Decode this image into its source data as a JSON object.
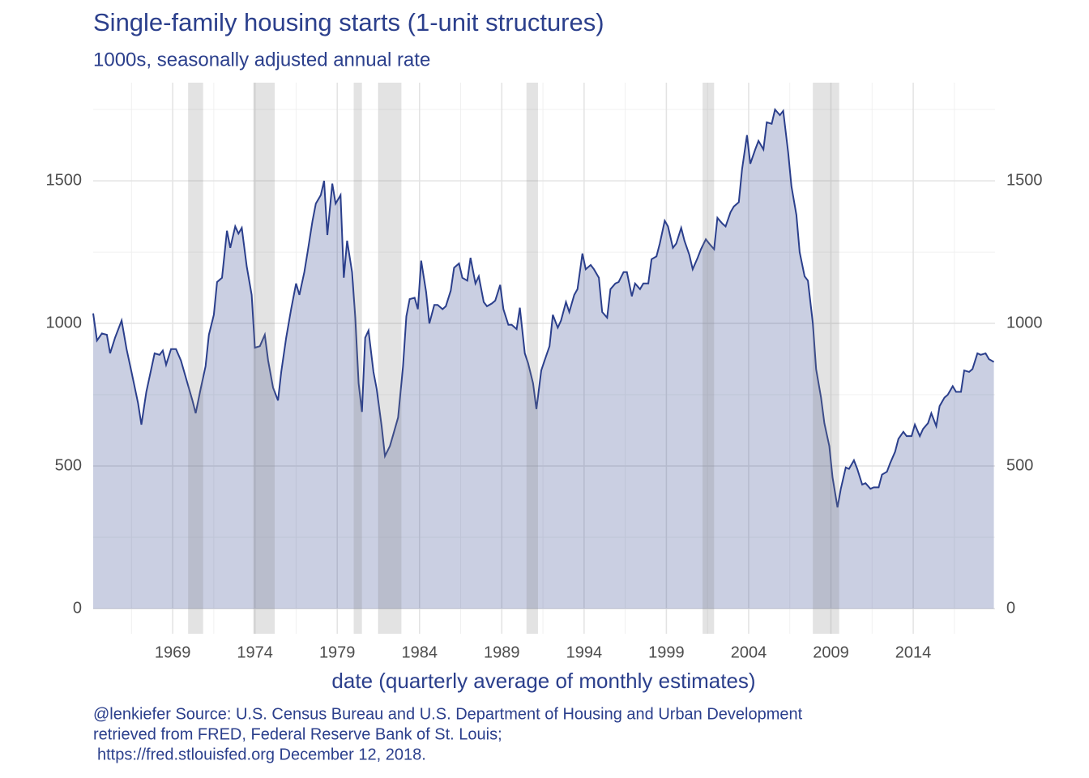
{
  "chart_data": {
    "type": "area",
    "title": "Single-family housing starts (1-unit structures)",
    "subtitle": "1000s, seasonally adjusted annual rate",
    "x_label": "date (quarterly average of monthly estimates)",
    "caption": [
      "@lenkiefer Source: U.S. Census Bureau and U.S. Department of Housing and Urban Development",
      "retrieved from FRED, Federal Reserve Bank of St. Louis;",
      "https://fred.stlouisfed.org December 12, 2018."
    ],
    "color": "#2b3f8c",
    "xlim": [
      1964.17,
      2018.97
    ],
    "ylim": [
      -88,
      1844
    ],
    "y2lim": [
      -88,
      1844
    ],
    "xticks": [
      1969,
      1974,
      1979,
      1984,
      1989,
      1994,
      1999,
      2004,
      2009,
      2014
    ],
    "xminor": [
      1966.5,
      1971.5,
      1976.5,
      1981.5,
      1986.5,
      1991.5,
      1996.5,
      2001.5,
      2006.5,
      2011.5,
      2016.5
    ],
    "yticks": [
      0,
      500,
      1000,
      1500
    ],
    "yminor": [
      250,
      750,
      1250,
      1750
    ],
    "y2ticks": [
      0,
      500,
      1000,
      1500
    ],
    "grid": true,
    "recessions": [
      [
        1969.94,
        1970.85
      ],
      [
        1973.9,
        1975.2
      ],
      [
        1980.0,
        1980.5
      ],
      [
        1981.5,
        1982.9
      ],
      [
        1990.5,
        1991.2
      ],
      [
        2001.2,
        2001.9
      ],
      [
        2007.9,
        2009.5
      ]
    ],
    "x": [
      1964.17,
      1964.4,
      1964.7,
      1965.0,
      1965.2,
      1965.5,
      1965.9,
      1966.2,
      1966.5,
      1966.9,
      1967.1,
      1967.4,
      1967.9,
      1968.2,
      1968.4,
      1968.6,
      1968.9,
      1969.2,
      1969.5,
      1969.9,
      1970.2,
      1970.4,
      1970.7,
      1971.0,
      1971.2,
      1971.5,
      1971.7,
      1972.0,
      1972.3,
      1972.5,
      1972.8,
      1973.0,
      1973.2,
      1973.5,
      1973.8,
      1974.0,
      1974.3,
      1974.6,
      1974.8,
      1975.1,
      1975.4,
      1975.6,
      1975.9,
      1976.2,
      1976.5,
      1976.7,
      1977.0,
      1977.2,
      1977.5,
      1977.7,
      1978.0,
      1978.2,
      1978.4,
      1978.7,
      1978.9,
      1979.2,
      1979.4,
      1979.6,
      1979.9,
      1980.1,
      1980.3,
      1980.5,
      1980.7,
      1980.9,
      1981.2,
      1981.4,
      1981.7,
      1981.9,
      1982.2,
      1982.4,
      1982.7,
      1983.0,
      1983.2,
      1983.4,
      1983.7,
      1983.9,
      1984.1,
      1984.4,
      1984.6,
      1984.9,
      1985.1,
      1985.4,
      1985.6,
      1985.9,
      1986.1,
      1986.4,
      1986.6,
      1986.9,
      1987.1,
      1987.4,
      1987.6,
      1987.9,
      1988.1,
      1988.4,
      1988.6,
      1988.9,
      1989.1,
      1989.4,
      1989.6,
      1989.9,
      1990.1,
      1990.4,
      1990.6,
      1990.9,
      1991.1,
      1991.4,
      1991.6,
      1991.9,
      1992.1,
      1992.4,
      1992.6,
      1992.9,
      1993.1,
      1993.4,
      1993.6,
      1993.9,
      1994.1,
      1994.4,
      1994.6,
      1994.9,
      1995.1,
      1995.4,
      1995.6,
      1995.9,
      1996.1,
      1996.4,
      1996.6,
      1996.9,
      1997.1,
      1997.4,
      1997.6,
      1997.9,
      1998.1,
      1998.4,
      1998.6,
      1998.9,
      1999.1,
      1999.4,
      1999.6,
      1999.9,
      2000.1,
      2000.4,
      2000.6,
      2000.9,
      2001.1,
      2001.4,
      2001.6,
      2001.9,
      2002.1,
      2002.4,
      2002.6,
      2002.9,
      2003.1,
      2003.4,
      2003.6,
      2003.9,
      2004.1,
      2004.4,
      2004.6,
      2004.9,
      2005.1,
      2005.4,
      2005.6,
      2005.9,
      2006.1,
      2006.4,
      2006.6,
      2006.9,
      2007.1,
      2007.4,
      2007.6,
      2007.9,
      2008.1,
      2008.4,
      2008.6,
      2008.9,
      2009.1,
      2009.4,
      2009.6,
      2009.9,
      2010.1,
      2010.4,
      2010.6,
      2010.9,
      2011.1,
      2011.4,
      2011.6,
      2011.9,
      2012.1,
      2012.4,
      2012.6,
      2012.9,
      2013.1,
      2013.4,
      2013.6,
      2013.9,
      2014.1,
      2014.4,
      2014.6,
      2014.9,
      2015.1,
      2015.4,
      2015.6,
      2015.9,
      2016.1,
      2016.4,
      2016.6,
      2016.9,
      2017.1,
      2017.4,
      2017.6,
      2017.9,
      2018.1,
      2018.4,
      2018.6,
      2018.9
    ],
    "values": [
      1035,
      940,
      965,
      960,
      895,
      950,
      1010,
      910,
      830,
      720,
      645,
      760,
      895,
      890,
      905,
      855,
      910,
      910,
      870,
      790,
      730,
      685,
      770,
      850,
      960,
      1030,
      1145,
      1160,
      1325,
      1265,
      1340,
      1315,
      1335,
      1200,
      1100,
      915,
      920,
      960,
      870,
      775,
      730,
      830,
      950,
      1050,
      1140,
      1100,
      1180,
      1250,
      1360,
      1420,
      1450,
      1500,
      1310,
      1490,
      1420,
      1450,
      1160,
      1290,
      1180,
      1020,
      790,
      690,
      950,
      975,
      830,
      770,
      640,
      535,
      570,
      610,
      670,
      850,
      1025,
      1085,
      1090,
      1050,
      1220,
      1110,
      1000,
      1065,
      1065,
      1050,
      1060,
      1115,
      1195,
      1210,
      1160,
      1150,
      1230,
      1140,
      1165,
      1075,
      1060,
      1070,
      1080,
      1135,
      1050,
      995,
      995,
      980,
      1055,
      895,
      860,
      790,
      700,
      835,
      870,
      920,
      1030,
      985,
      1010,
      1075,
      1040,
      1100,
      1120,
      1245,
      1190,
      1205,
      1190,
      1160,
      1040,
      1020,
      1120,
      1140,
      1145,
      1180,
      1180,
      1095,
      1140,
      1120,
      1140,
      1140,
      1225,
      1235,
      1280,
      1360,
      1340,
      1265,
      1280,
      1335,
      1290,
      1240,
      1190,
      1230,
      1260,
      1295,
      1280,
      1260,
      1370,
      1350,
      1340,
      1390,
      1410,
      1425,
      1540,
      1660,
      1560,
      1610,
      1640,
      1610,
      1705,
      1700,
      1750,
      1730,
      1745,
      1600,
      1480,
      1380,
      1250,
      1165,
      1150,
      1000,
      840,
      740,
      650,
      570,
      460,
      355,
      420,
      495,
      490,
      520,
      490,
      435,
      440,
      420,
      425,
      425,
      470,
      480,
      510,
      550,
      595,
      620,
      605,
      605,
      645,
      605,
      630,
      650,
      685,
      640,
      710,
      740,
      750,
      780,
      760,
      760,
      835,
      830,
      840,
      895,
      890,
      895,
      875,
      865
    ]
  }
}
